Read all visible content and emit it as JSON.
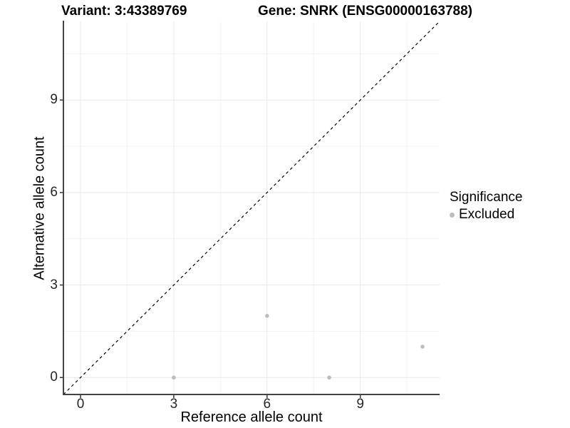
{
  "chart_data": {
    "type": "scatter",
    "title_left": "Variant: 3:43389769",
    "title_right": "Gene: SNRK (ENSG00000163788)",
    "xlabel": "Reference allele count",
    "ylabel": "Alternative allele count",
    "xlim": [
      -0.55,
      11.55
    ],
    "ylim": [
      -0.55,
      11.55
    ],
    "xticks": [
      0,
      3,
      6,
      9
    ],
    "yticks": [
      0,
      3,
      6,
      9
    ],
    "minor_ticks": [
      1.5,
      4.5,
      7.5,
      10.5
    ],
    "grid": "major and minor, light gray on white",
    "series": [
      {
        "name": "Excluded",
        "color": "#bcbcbc",
        "points": [
          [
            3,
            0
          ],
          [
            6,
            2
          ],
          [
            8,
            0
          ],
          [
            11,
            1
          ]
        ]
      }
    ],
    "identity_line": {
      "style": "dashed",
      "color": "#000000",
      "from": [
        -0.55,
        -0.55
      ],
      "to": [
        11.55,
        11.55
      ]
    },
    "legend": {
      "title": "Significance",
      "position": "right",
      "entries": [
        {
          "label": "Excluded",
          "color": "#bcbcbc"
        }
      ]
    },
    "colors": {
      "background": "#ffffff",
      "grid_major": "#e8e8e8",
      "grid_minor": "#f3f3f3",
      "axis_line": "#444444",
      "tick_mark": "#333333",
      "tick_label": "#262626",
      "point": "#bcbcbc",
      "dashed_line": "#000000"
    }
  }
}
